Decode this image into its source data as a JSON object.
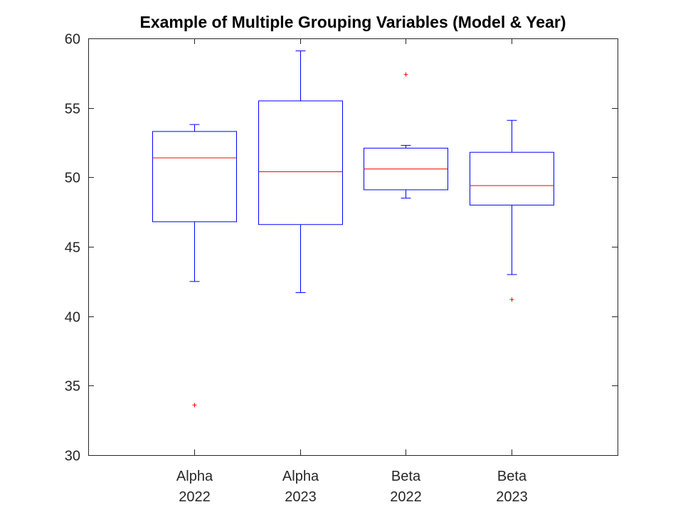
{
  "chart_data": {
    "type": "box",
    "title": "Example of Multiple Grouping Variables (Model & Year)",
    "xlabel": "",
    "ylabel": "",
    "ylim": [
      30,
      60
    ],
    "yticks": [
      30,
      35,
      40,
      45,
      50,
      55,
      60
    ],
    "grid": false,
    "legend": "none",
    "colors": {
      "box": "#0000ff",
      "median": "#ff0000",
      "outlier": "#ff0000",
      "axis": "#262626"
    },
    "groups": [
      {
        "label_line1": "Alpha",
        "label_line2": "2022",
        "whisker_low": 42.5,
        "q1": 46.8,
        "median": 51.4,
        "q3": 53.3,
        "whisker_high": 53.8,
        "outliers": [
          33.6
        ]
      },
      {
        "label_line1": "Alpha",
        "label_line2": "2023",
        "whisker_low": 41.7,
        "q1": 46.6,
        "median": 50.4,
        "q3": 55.5,
        "whisker_high": 59.1,
        "outliers": []
      },
      {
        "label_line1": "Beta",
        "label_line2": "2022",
        "whisker_low": 48.5,
        "q1": 49.1,
        "median": 50.6,
        "q3": 52.1,
        "whisker_high": 52.3,
        "outliers": [
          57.4
        ]
      },
      {
        "label_line1": "Beta",
        "label_line2": "2023",
        "whisker_low": 43.0,
        "q1": 48.0,
        "median": 49.4,
        "q3": 51.8,
        "whisker_high": 54.1,
        "outliers": [
          41.2
        ]
      }
    ]
  }
}
